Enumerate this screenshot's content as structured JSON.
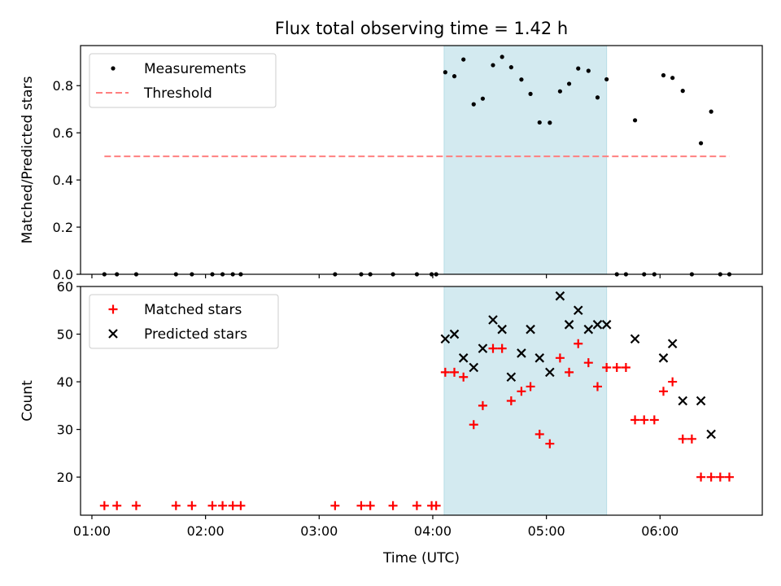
{
  "chart_data": [
    {
      "type": "scatter",
      "title": "Flux total observing time = 1.42 h",
      "xlabel": "",
      "ylabel": "Matched/Predicted stars",
      "xlim": [
        0.9,
        6.9
      ],
      "ylim": [
        0,
        0.97
      ],
      "yticks": [
        0.0,
        0.2,
        0.4,
        0.6,
        0.8
      ],
      "ytick_labels": [
        "0.0",
        "0.2",
        "0.4",
        "0.6",
        "0.8"
      ],
      "highlight_span": [
        4.1,
        5.53
      ],
      "highlight_color": "#d3eaf0",
      "legend": {
        "placement": "upper-left",
        "entries": [
          "Measurements",
          "Threshold"
        ]
      },
      "series": [
        {
          "name": "Measurements",
          "marker": "dot",
          "color": "#000000",
          "x": [
            1.11,
            1.22,
            1.39,
            1.74,
            1.88,
            2.06,
            2.15,
            2.24,
            2.31,
            3.14,
            3.37,
            3.45,
            3.65,
            3.86,
            3.99,
            4.03,
            4.11,
            4.19,
            4.27,
            4.36,
            4.44,
            4.53,
            4.61,
            4.69,
            4.78,
            4.86,
            4.94,
            5.03,
            5.12,
            5.2,
            5.28,
            5.37,
            5.45,
            5.53,
            5.62,
            5.7,
            5.78,
            5.86,
            5.95,
            6.03,
            6.11,
            6.2,
            6.28,
            6.36,
            6.45,
            6.53,
            6.61
          ],
          "y": [
            0,
            0,
            0,
            0,
            0,
            0,
            0,
            0,
            0,
            0,
            0,
            0,
            0,
            0,
            0,
            0,
            0.857,
            0.84,
            0.911,
            0.721,
            0.745,
            0.887,
            0.922,
            0.878,
            0.826,
            0.765,
            0.644,
            0.643,
            0.776,
            0.808,
            0.873,
            0.863,
            0.75,
            0.827,
            0,
            0,
            0.653,
            0,
            0,
            0.844,
            0.833,
            0.778,
            0,
            0.556,
            0.69,
            0,
            0
          ]
        },
        {
          "name": "Threshold",
          "style": "dashed",
          "color": "#ff8080",
          "x": [
            1.11,
            6.61
          ],
          "y": [
            0.5,
            0.5
          ]
        }
      ]
    },
    {
      "type": "scatter",
      "title": "",
      "xlabel": "Time (UTC)",
      "ylabel": "Count",
      "xlim": [
        0.9,
        6.9
      ],
      "ylim": [
        12,
        60
      ],
      "yticks": [
        20,
        30,
        40,
        50,
        60
      ],
      "ytick_labels": [
        "20",
        "30",
        "40",
        "50",
        "60"
      ],
      "xticks": [
        1,
        2,
        3,
        4,
        5,
        6
      ],
      "xtick_labels": [
        "01:00",
        "02:00",
        "03:00",
        "04:00",
        "05:00",
        "06:00"
      ],
      "highlight_span": [
        4.1,
        5.53
      ],
      "highlight_color": "#d3eaf0",
      "legend": {
        "placement": "upper-left",
        "entries": [
          "Matched stars",
          "Predicted stars"
        ]
      },
      "series": [
        {
          "name": "Matched stars",
          "marker": "plus",
          "color": "#ff0000",
          "x": [
            1.11,
            1.22,
            1.39,
            1.74,
            1.88,
            2.06,
            2.15,
            2.24,
            2.31,
            3.14,
            3.37,
            3.45,
            3.65,
            3.86,
            3.99,
            4.03,
            4.11,
            4.19,
            4.27,
            4.36,
            4.44,
            4.53,
            4.61,
            4.69,
            4.78,
            4.86,
            4.94,
            5.03,
            5.12,
            5.2,
            5.28,
            5.37,
            5.45,
            5.53,
            5.62,
            5.7,
            5.78,
            5.86,
            5.95,
            6.03,
            6.11,
            6.2,
            6.28,
            6.36,
            6.45,
            6.53,
            6.61
          ],
          "y": [
            14,
            14,
            14,
            14,
            14,
            14,
            14,
            14,
            14,
            14,
            14,
            14,
            14,
            14,
            14,
            14,
            42,
            42,
            41,
            31,
            35,
            47,
            47,
            36,
            38,
            39,
            29,
            27,
            45,
            42,
            48,
            44,
            39,
            43,
            43,
            43,
            32,
            32,
            32,
            38,
            40,
            28,
            28,
            20,
            20,
            20,
            20
          ]
        },
        {
          "name": "Predicted stars",
          "marker": "x",
          "color": "#000000",
          "x": [
            4.11,
            4.19,
            4.27,
            4.36,
            4.44,
            4.53,
            4.61,
            4.69,
            4.78,
            4.86,
            4.94,
            5.03,
            5.12,
            5.2,
            5.28,
            5.37,
            5.45,
            5.53,
            5.78,
            6.03,
            6.11,
            6.2,
            6.36,
            6.45
          ],
          "y": [
            49,
            50,
            45,
            43,
            47,
            53,
            51,
            41,
            46,
            51,
            45,
            42,
            58,
            52,
            55,
            51,
            52,
            52,
            49,
            45,
            48,
            36,
            36,
            29
          ]
        }
      ]
    }
  ]
}
